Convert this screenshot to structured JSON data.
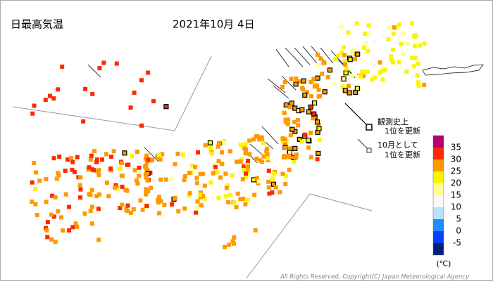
{
  "title": "日最高気温",
  "date": "2021年10月 4日",
  "legend": {
    "colors": [
      "#b4006e",
      "#ff2800",
      "#ff9900",
      "#faf500",
      "#ffff96",
      "#f8f8f8",
      "#b9e1ff",
      "#218cff",
      "#0041ff",
      "#002080"
    ],
    "ticks": [
      35,
      30,
      25,
      20,
      15,
      10,
      5,
      0,
      -5
    ],
    "unit": "(℃)"
  },
  "record_notes": [
    {
      "lines": [
        "観測史上",
        "1位を更新"
      ]
    },
    {
      "lines": [
        "10月として",
        "1位を更新"
      ]
    }
  ],
  "copyright": "All Rights Reserved, Copyright(C) Japan Meteorological Agency"
}
